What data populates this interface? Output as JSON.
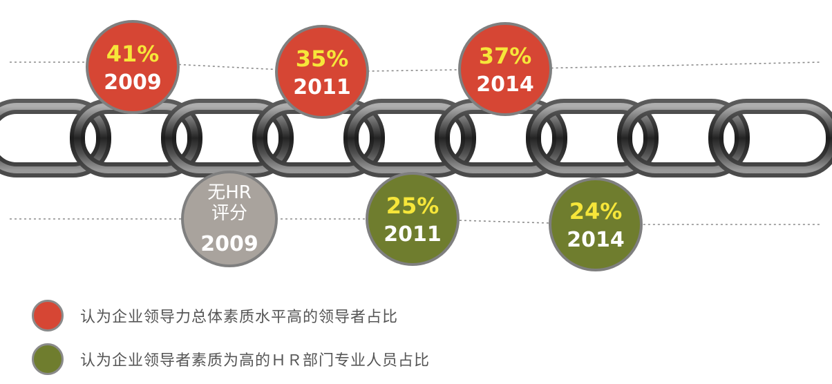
{
  "colors": {
    "red": "#d64634",
    "olive": "#6f7d2e",
    "gray": "#a9a39d",
    "pct_yellow": "#f6e63a",
    "year_white": "#ffffff"
  },
  "chart_data": {
    "type": "infographic",
    "series": [
      {
        "name": "认为企业领导力总体素质水平高的领导者占比",
        "color": "#d64634",
        "points": [
          {
            "year": "2009",
            "label": "41%",
            "value": 41
          },
          {
            "year": "2011",
            "label": "35%",
            "value": 35
          },
          {
            "year": "2014",
            "label": "37%",
            "value": 37
          }
        ]
      },
      {
        "name": "认为企业领导者素质为高的ＨＲ部门专业人员占比",
        "color": "#6f7d2e",
        "points": [
          {
            "year": "2009",
            "label": "无HR\n评分",
            "value": null
          },
          {
            "year": "2011",
            "label": "25%",
            "value": 25
          },
          {
            "year": "2014",
            "label": "24%",
            "value": 24
          }
        ]
      }
    ]
  },
  "legend": [
    {
      "label": "认为企业领导力总体素质水平高的领导者占比",
      "color": "#d64634"
    },
    {
      "label": "认为企业领导者素质为高的ＨＲ部门专业人员占比",
      "color": "#6f7d2e"
    }
  ]
}
